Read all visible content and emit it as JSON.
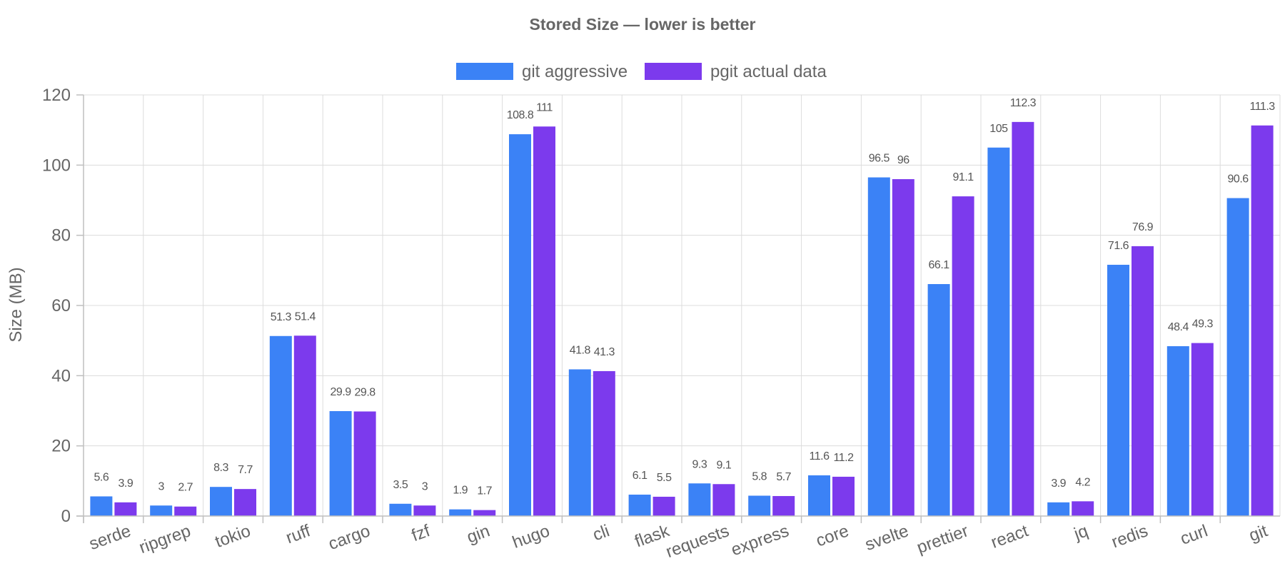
{
  "chart_data": {
    "type": "bar",
    "title": "Stored Size — lower is better",
    "xlabel": "",
    "ylabel": "Size (MB)",
    "ylim": [
      0,
      120
    ],
    "yticks": [
      0,
      20,
      40,
      60,
      80,
      100,
      120
    ],
    "grid": true,
    "legend_position": "top",
    "categories": [
      "serde",
      "ripgrep",
      "tokio",
      "ruff",
      "cargo",
      "fzf",
      "gin",
      "hugo",
      "cli",
      "flask",
      "requests",
      "express",
      "core",
      "svelte",
      "prettier",
      "react",
      "jq",
      "redis",
      "curl",
      "git"
    ],
    "series": [
      {
        "name": "git aggressive",
        "color": "#3b82f6",
        "values": [
          5.6,
          3,
          8.3,
          51.3,
          29.9,
          3.5,
          1.9,
          108.8,
          41.8,
          6.1,
          9.3,
          5.8,
          11.6,
          96.5,
          66.1,
          105,
          3.9,
          71.6,
          48.4,
          90.6
        ]
      },
      {
        "name": "pgit actual data",
        "color": "#7c3aed",
        "values": [
          3.9,
          2.7,
          7.7,
          51.4,
          29.8,
          3,
          1.7,
          111,
          41.3,
          5.5,
          9.1,
          5.7,
          11.2,
          96,
          91.1,
          112.3,
          4.2,
          76.9,
          49.3,
          111.3
        ]
      }
    ]
  }
}
